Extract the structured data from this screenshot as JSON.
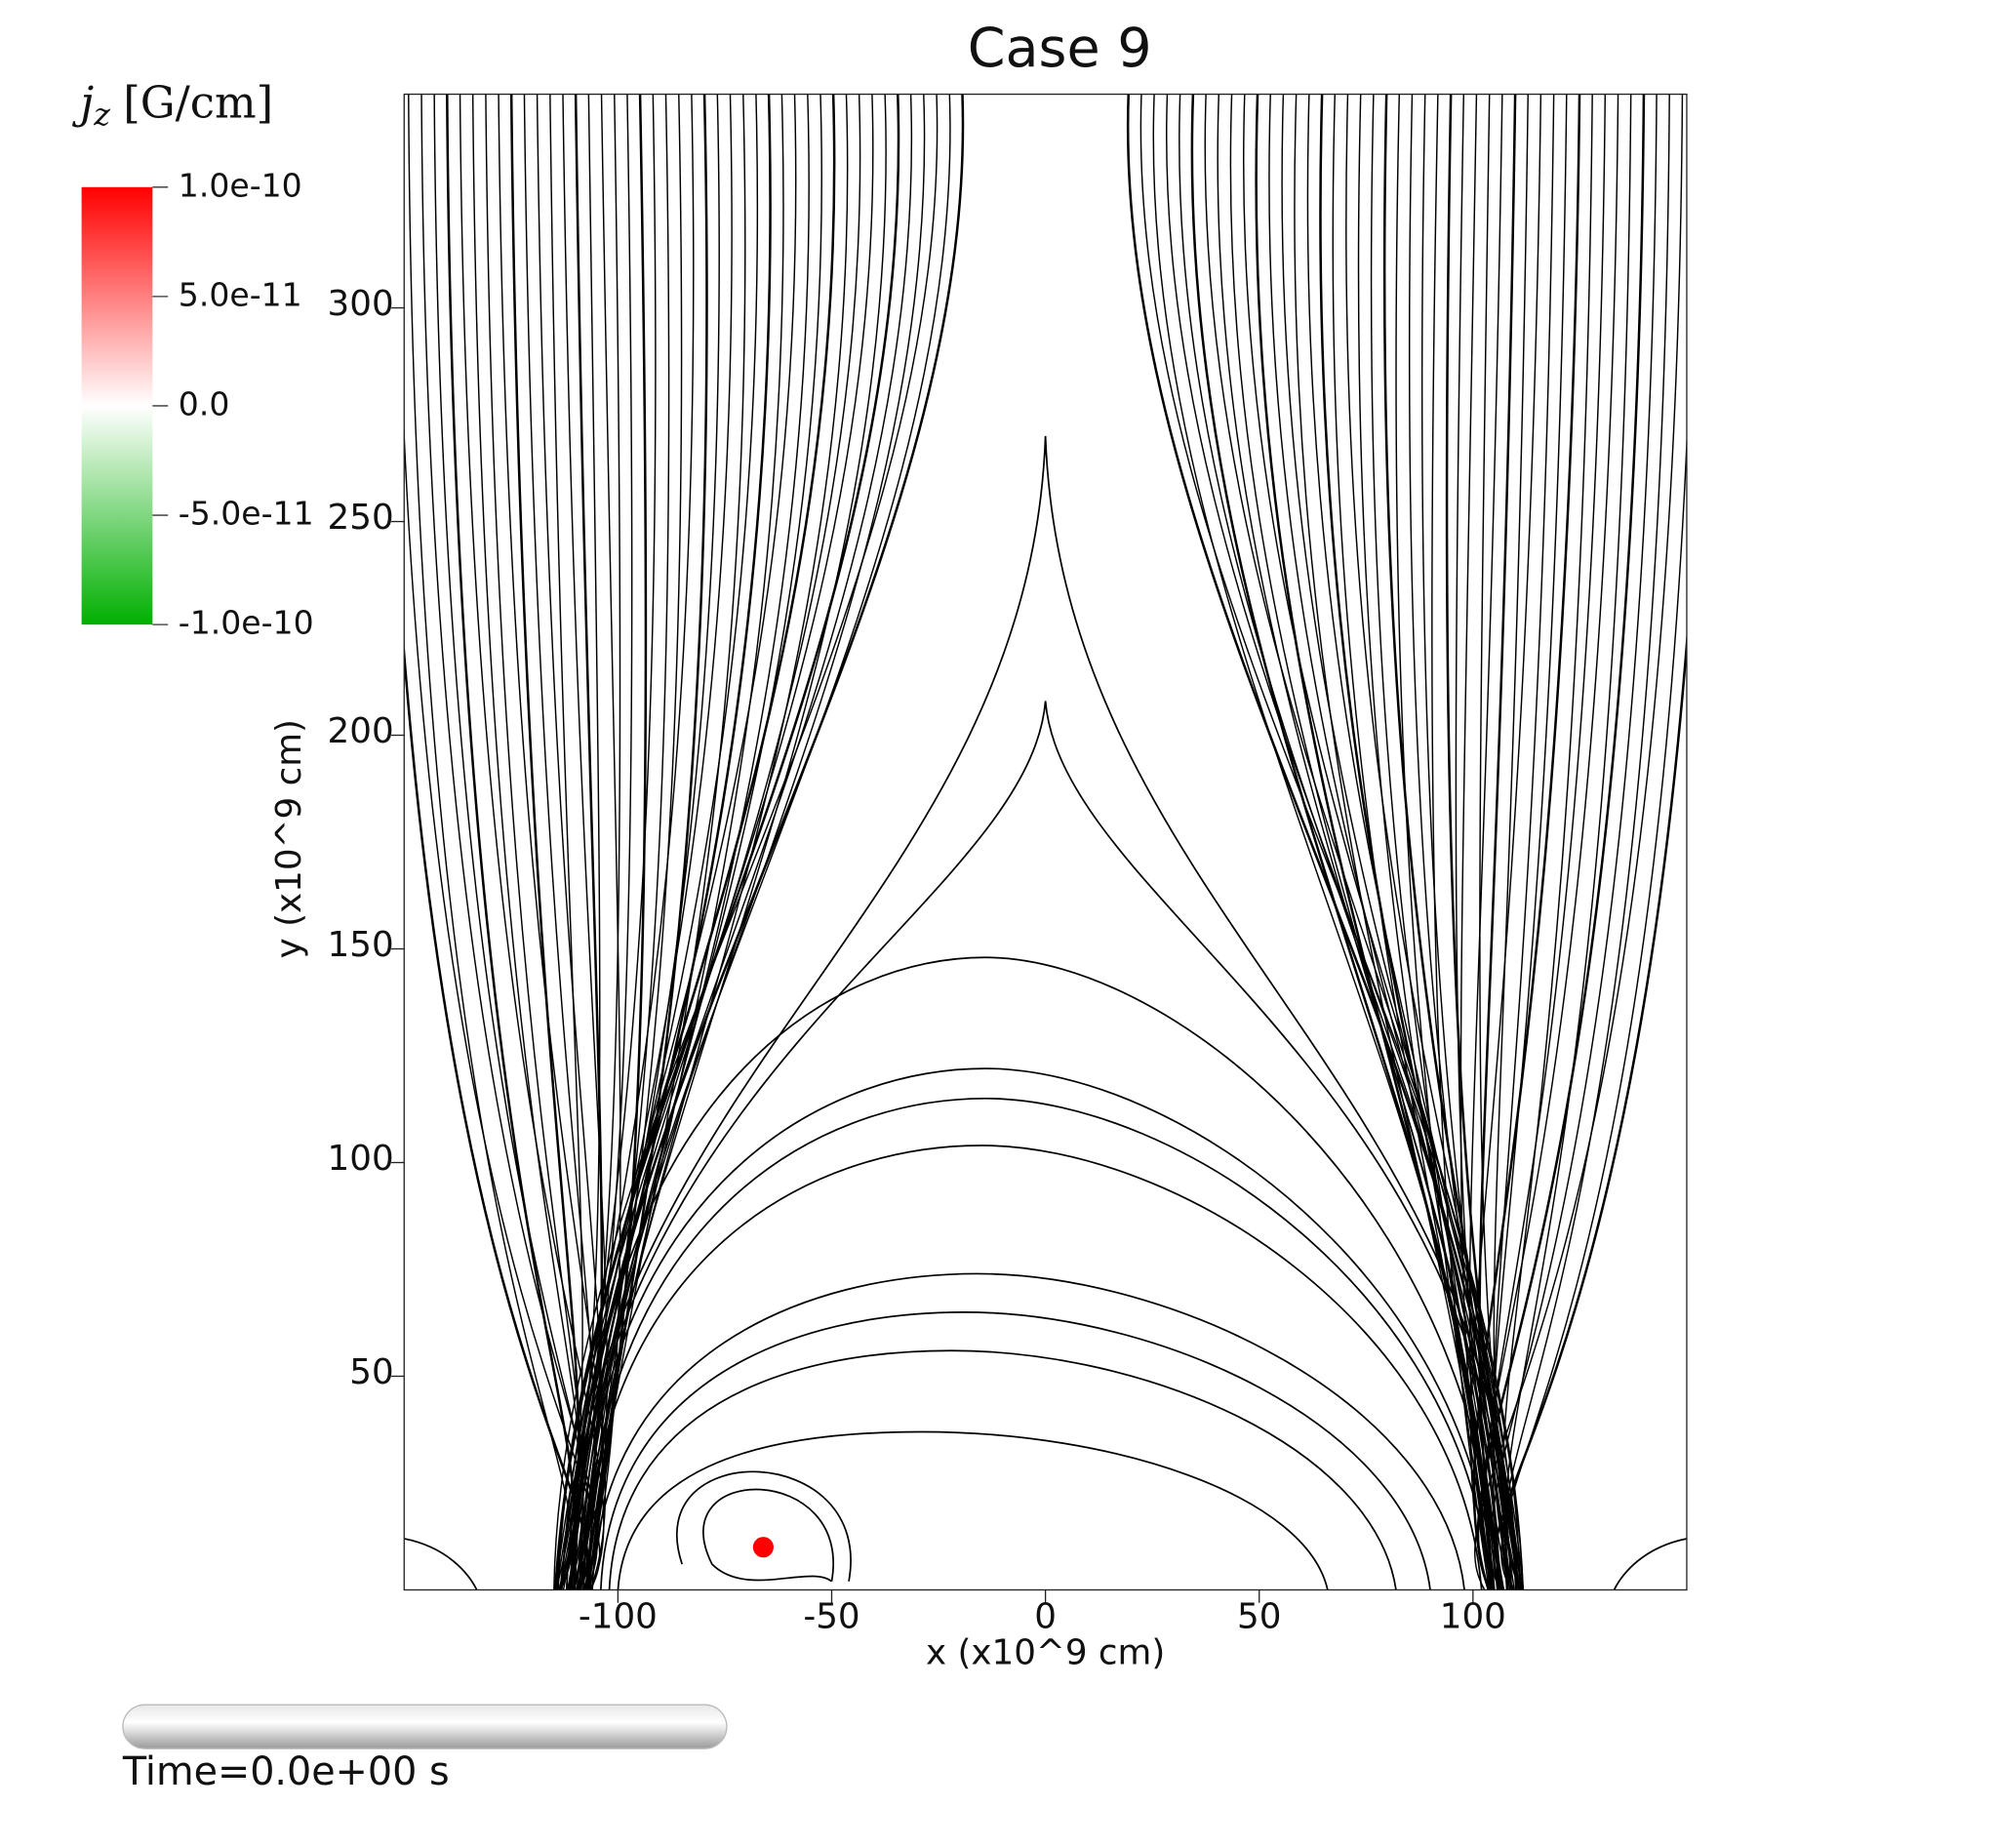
{
  "chart_data": {
    "type": "fieldlines",
    "title": "Case 9",
    "x_label": "x (x10^9 cm)",
    "y_label": "y (x10^9 cm)",
    "xlim": [
      -150,
      150
    ],
    "ylim": [
      0,
      350
    ],
    "xticks": [
      -100,
      -50,
      0,
      50,
      100
    ],
    "yticks": [
      50,
      100,
      150,
      200,
      250,
      300
    ],
    "points": {
      "x": [
        -66
      ],
      "y": [
        10
      ],
      "color": "#ff0000"
    },
    "colorbar": {
      "symbol": "j",
      "subscript": "z",
      "unit": "[G/cm]",
      "lim": [
        -1e-10,
        1e-10
      ],
      "colors": [
        "#00b000",
        "#ffffff",
        "#ff0000"
      ],
      "ticks": [
        {
          "value": 1e-10,
          "label": "1.0e-10"
        },
        {
          "value": 5e-11,
          "label": "5.0e-11"
        },
        {
          "value": 0,
          "label": "0.0"
        },
        {
          "value": -5e-11,
          "label": "-5.0e-11"
        },
        {
          "value": -1e-10,
          "label": "-1.0e-10"
        }
      ]
    },
    "time_label": "Time=0.0e+00 s"
  }
}
